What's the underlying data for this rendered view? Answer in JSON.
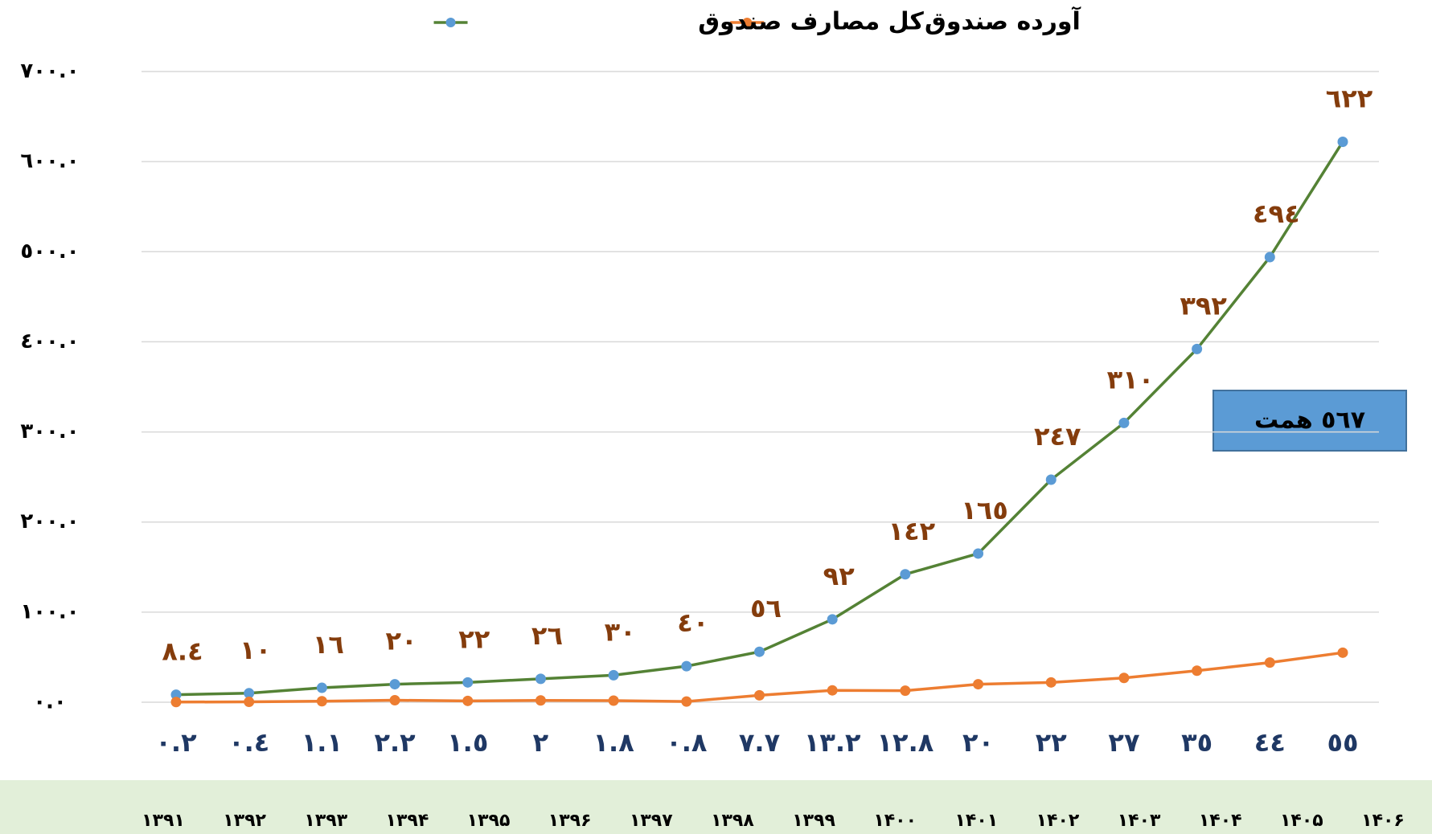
{
  "chart_data": {
    "type": "line",
    "categories": [
      "١٣٩١",
      "١٣٩٢",
      "١٣٩٣",
      "١٣٩۴",
      "١٣٩۵",
      "١٣٩۶",
      "١٣٩٧",
      "١٣٩٨",
      "١٣٩٩",
      "١۴٠٠",
      "١۴٠١",
      "١۴٠٢",
      "١۴٠٣",
      "١۴٠۴",
      "١۴٠۵",
      "١۴٠۶",
      null
    ],
    "series": [
      {
        "name": "کل مصارف صندوق",
        "color": "#548235",
        "marker_color": "#5b9bd5",
        "label_color": "#843c0c",
        "values": [
          8.4,
          10,
          16,
          20,
          22,
          26,
          30,
          40,
          56,
          92,
          142,
          165,
          247,
          310,
          392,
          494,
          622
        ],
        "value_labels": [
          "٨.٤",
          "١٠",
          "١٦",
          "٢٠",
          "٢٢",
          "٢٦",
          "٣٠",
          "٤٠",
          "٥٦",
          "٩٢",
          "١٤٢",
          "١٦٥",
          "٢٤٧",
          "٣١٠",
          "٣٩٢",
          "٤٩٤",
          "٦٢٢"
        ]
      },
      {
        "name": "آورده صندوق",
        "color": "#ed7d31",
        "marker_color": "#ed7d31",
        "label_color": "#1f3864",
        "values": [
          0.2,
          0.4,
          1.1,
          2.2,
          1.5,
          2,
          1.8,
          0.8,
          7.7,
          13.2,
          12.8,
          20,
          22,
          27,
          35,
          44,
          55
        ],
        "value_labels": [
          "٠.٢",
          "٠.٤",
          "١.١",
          "٢.٢",
          "١.٥",
          "٢",
          "١.٨",
          "٠.٨",
          "٧.٧",
          "١٣.٢",
          "١٢.٨",
          "٢٠",
          "٢٢",
          "٢٧",
          "٣٥",
          "٤٤",
          "٥٥"
        ]
      }
    ],
    "ylim": [
      0,
      700
    ],
    "yticks": [
      {
        "value": 0,
        "label": "٠.٠"
      },
      {
        "value": 100,
        "label": "١٠٠.٠"
      },
      {
        "value": 200,
        "label": "٢٠٠.٠"
      },
      {
        "value": 300,
        "label": "٣٠٠.٠"
      },
      {
        "value": 400,
        "label": "٤٠٠.٠"
      },
      {
        "value": 500,
        "label": "٥٠٠.٠"
      },
      {
        "value": 600,
        "label": "٦٠٠.٠"
      },
      {
        "value": 700,
        "label": "٧٠٠.٠"
      }
    ],
    "grid": true,
    "legend": "top",
    "annotation": "٥٦٧ همت"
  }
}
